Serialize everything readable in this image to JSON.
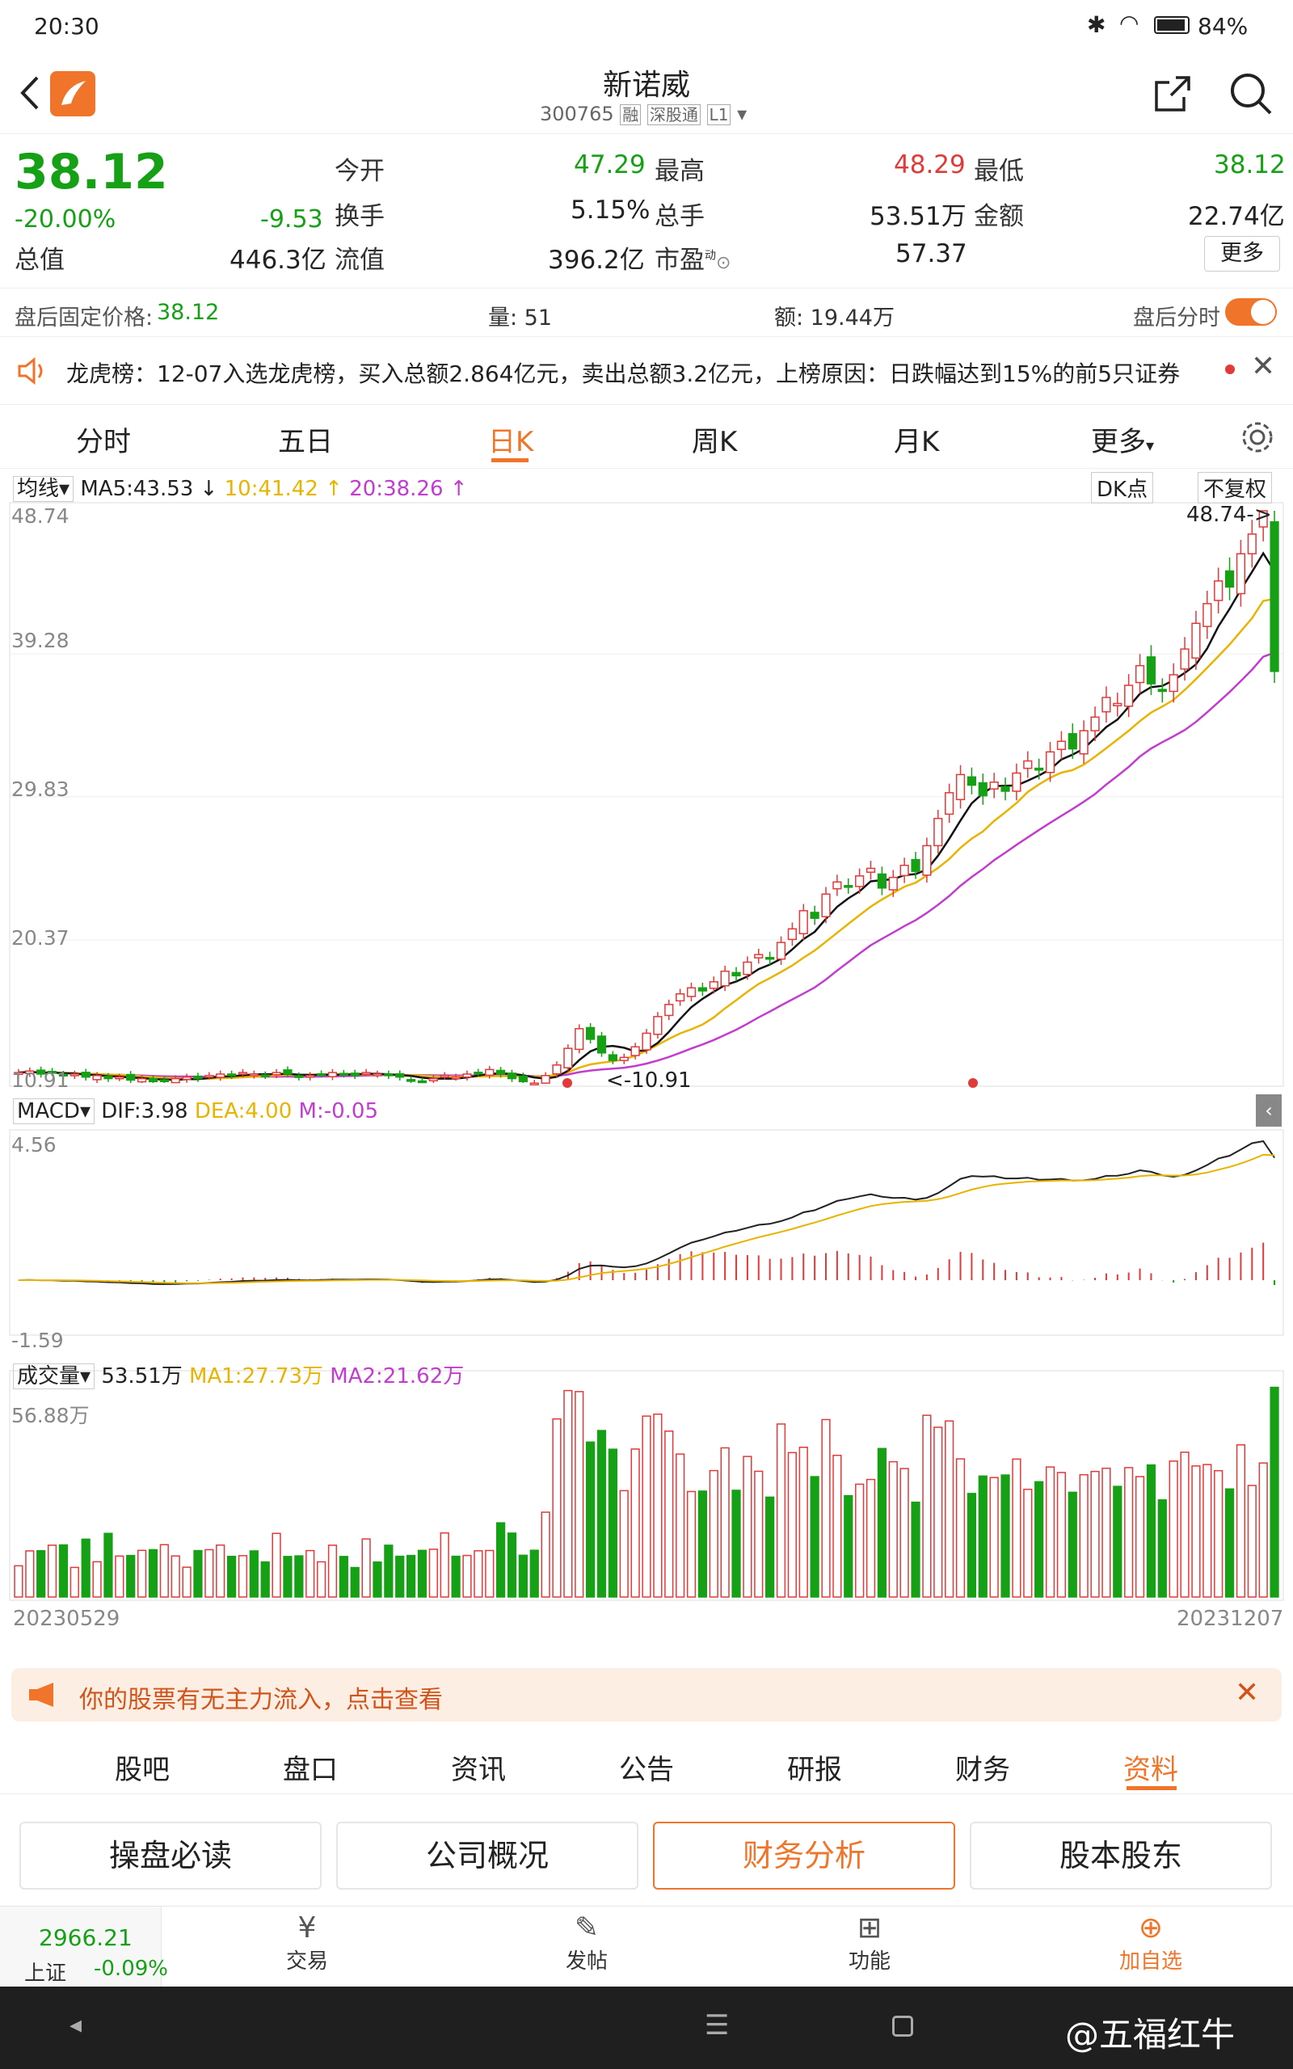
{
  "status": {
    "time": "20:30",
    "battery": "84%",
    "icons": [
      "bluetooth-icon",
      "wifi-icon",
      "battery-icon"
    ]
  },
  "header": {
    "title": "新诺威",
    "code": "300765",
    "tags": [
      "融",
      "深股通",
      "L1"
    ]
  },
  "quote": {
    "price": "38.12",
    "pct": "-20.00%",
    "chg": "-9.53",
    "total_label": "总值",
    "total_val": "446.3亿",
    "open_label": "今开",
    "open_val": "47.29",
    "turn_label": "换手",
    "turn_val": "5.15%",
    "float_label": "流值",
    "float_val": "396.2亿",
    "high_label": "最高",
    "high_val": "48.29",
    "vol_label": "总手",
    "vol_val": "53.51万",
    "pe_label": "市盈",
    "pe_sup": "动",
    "pe_val": "57.37",
    "low_label": "最低",
    "low_val": "38.12",
    "amt_label": "金额",
    "amt_val": "22.74亿",
    "more": "更多"
  },
  "after": {
    "fixed_label": "盘后固定价格:",
    "fixed_val": "38.12",
    "vol": "量: 51",
    "amt": "额: 19.44万",
    "tick": "盘后分时"
  },
  "news": {
    "text": "龙虎榜：12-07入选龙虎榜，买入总额2.864亿元，卖出总额3.2亿元，上榜原因：日跌幅达到15%的前5只证券"
  },
  "tabs": [
    "分时",
    "五日",
    "日K",
    "周K",
    "月K",
    "更多"
  ],
  "ma": {
    "label": "均线",
    "ma5": "MA5:43.53 ↓",
    "ma10": "10:41.42 ↑",
    "ma20": "20:38.26 ↑",
    "dk": "DK点",
    "fq": "不复权"
  },
  "axis": {
    "p1": "48.74",
    "p2": "39.28",
    "p3": "29.83",
    "p4": "20.37",
    "p5": "10.91",
    "maxmark": "48.74->",
    "minmark": "<-10.91",
    "macd_top": "4.56",
    "macd_bot": "-1.59",
    "vol_top": "56.88万",
    "date_start": "20230529",
    "date_end": "20231207"
  },
  "macd": {
    "label": "MACD",
    "dif": "DIF:3.98",
    "dea": "DEA:4.00",
    "m": "M:-0.05"
  },
  "volume": {
    "label": "成交量",
    "val": "53.51万",
    "ma1": "MA1:27.73万",
    "ma2": "MA2:21.62万"
  },
  "notice": "你的股票有无主力流入，点击查看",
  "bottom_tabs": [
    "股吧",
    "盘口",
    "资讯",
    "公告",
    "研报",
    "财务",
    "资料"
  ],
  "buttons": [
    "操盘必读",
    "公司概况",
    "财务分析",
    "股本股东"
  ],
  "index": {
    "val": "2966.21",
    "name": "上证",
    "pct": "-0.09%"
  },
  "nav": [
    "交易",
    "发帖",
    "功能",
    "加自选"
  ],
  "watermark": "@五福红牛",
  "colors": {
    "up": "#e03a3a",
    "down": "#16a016",
    "accent": "#f0752a",
    "ma5": "#111111",
    "ma10": "#e8b400",
    "ma20": "#c23ccf"
  },
  "chart_data": {
    "type": "candlestick",
    "x_range": [
      "20230529",
      "20231207"
    ],
    "y_range": [
      10.91,
      48.74
    ],
    "low_mark": 10.91,
    "high_mark": 48.74,
    "closes": [
      11.6,
      11.7,
      11.5,
      11.6,
      11.4,
      11.5,
      11.3,
      11.4,
      11.2,
      11.3,
      11.1,
      11.2,
      11.0,
      11.1,
      11.2,
      11.3,
      11.2,
      11.4,
      11.5,
      11.4,
      11.6,
      11.5,
      11.4,
      11.6,
      11.5,
      11.3,
      11.4,
      11.5,
      11.6,
      11.5,
      11.4,
      11.6,
      11.5,
      11.4,
      11.3,
      11.1,
      11.0,
      11.2,
      11.4,
      11.3,
      11.5,
      11.6,
      11.8,
      11.5,
      11.2,
      11.0,
      10.9,
      11.4,
      12.1,
      13.2,
      14.5,
      13.8,
      12.9,
      12.4,
      12.6,
      13.3,
      14.2,
      15.3,
      16.1,
      16.8,
      17.2,
      17.0,
      17.6,
      18.3,
      18.0,
      18.9,
      19.4,
      19.1,
      20.2,
      21.1,
      22.3,
      21.8,
      23.4,
      24.2,
      23.9,
      24.6,
      25.1,
      23.8,
      24.5,
      25.3,
      24.9,
      26.6,
      28.4,
      30.1,
      31.3,
      30.6,
      29.9,
      30.8,
      30.2,
      31.4,
      32.2,
      31.6,
      32.8,
      33.5,
      33.0,
      34.2,
      35.1,
      36.4,
      36.0,
      37.2,
      38.5,
      37.3,
      36.8,
      37.9,
      39.6,
      41.3,
      42.6,
      44.1,
      43.7,
      45.9,
      47.2,
      48.74,
      38.12
    ]
  }
}
